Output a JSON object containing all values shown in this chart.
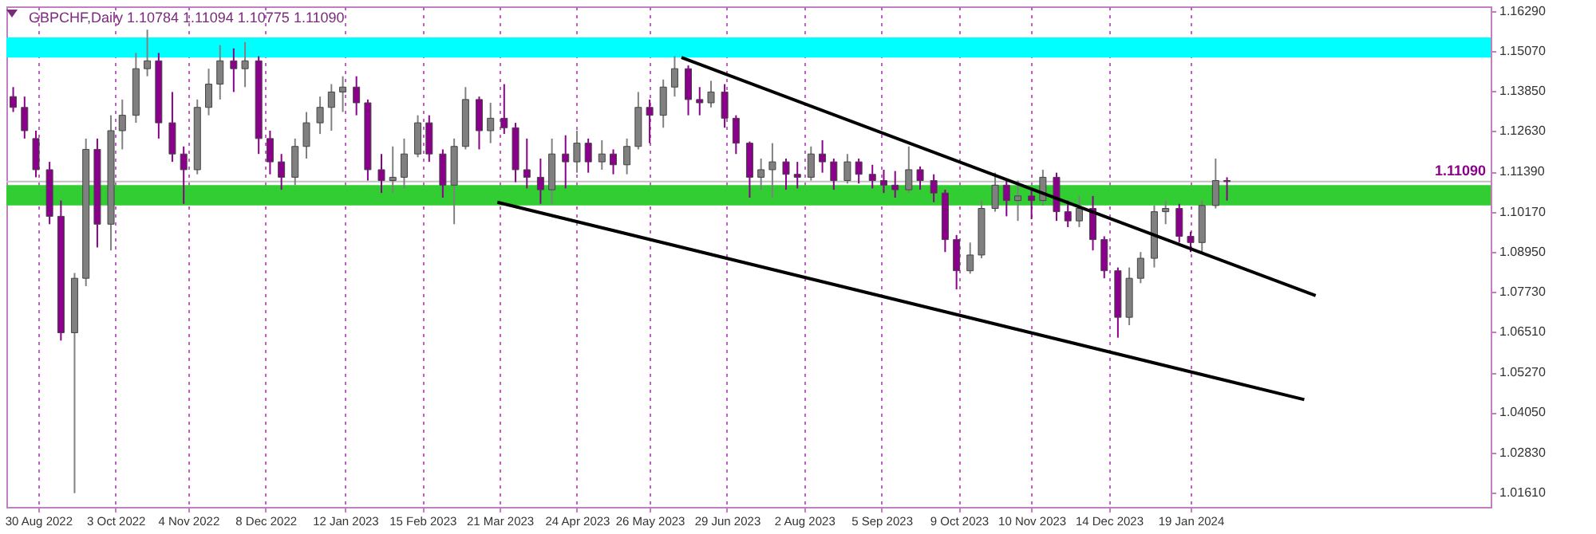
{
  "chart_data": {
    "type": "candlestick",
    "title": "GBPCHF,Daily  1.10784 1.11094 1.10775 1.11090",
    "x": [
      "2022-08-19",
      "2022-08-24",
      "2022-08-29",
      "2022-09-04",
      "2022-09-09",
      "2022-09-15",
      "2022-09-20",
      "2022-09-25",
      "2022-10-01",
      "2022-10-06",
      "2022-10-12",
      "2022-10-17",
      "2022-10-22",
      "2022-10-28",
      "2022-11-02",
      "2022-11-08",
      "2022-11-13",
      "2022-11-18",
      "2022-11-24",
      "2022-11-29",
      "2022-12-05",
      "2022-12-10",
      "2022-12-15",
      "2022-12-21",
      "2022-12-26",
      "2023-01-01",
      "2023-01-06",
      "2023-01-11",
      "2023-01-17",
      "2023-01-22",
      "2023-01-28",
      "2023-02-02",
      "2023-02-07",
      "2023-02-13",
      "2023-02-18",
      "2023-02-24",
      "2023-03-01",
      "2023-03-06",
      "2023-03-12",
      "2023-03-17",
      "2023-03-23",
      "2023-03-28",
      "2023-04-02",
      "2023-04-08",
      "2023-04-13",
      "2023-04-19",
      "2023-04-24",
      "2023-04-29",
      "2023-05-05",
      "2023-05-10",
      "2023-05-16",
      "2023-05-21",
      "2023-05-26",
      "2023-06-01",
      "2023-06-06",
      "2023-06-12",
      "2023-06-17",
      "2023-06-22",
      "2023-06-28",
      "2023-07-03",
      "2023-07-09",
      "2023-07-14",
      "2023-07-19",
      "2023-07-25",
      "2023-07-30",
      "2023-08-05",
      "2023-08-10",
      "2023-08-15",
      "2023-08-21",
      "2023-08-26",
      "2023-09-01",
      "2023-09-06",
      "2023-09-11",
      "2023-09-17",
      "2023-09-22",
      "2023-09-28",
      "2023-10-03",
      "2023-10-08",
      "2023-10-14",
      "2023-10-19",
      "2023-10-25",
      "2023-10-30",
      "2023-11-04",
      "2023-11-10",
      "2023-11-15",
      "2023-11-21",
      "2023-11-26",
      "2023-12-01",
      "2023-12-07",
      "2023-12-12",
      "2023-12-18",
      "2023-12-23",
      "2023-12-28",
      "2024-01-03",
      "2024-01-08",
      "2024-01-14",
      "2024-01-19",
      "2024-01-24",
      "2024-01-30",
      "2024-02-04"
    ],
    "ohlc": [
      [
        1.1368,
        1.1397,
        1.1321,
        1.1335
      ],
      [
        1.1335,
        1.1368,
        1.124,
        1.1264
      ],
      [
        1.124,
        1.1264,
        1.1122,
        1.1145
      ],
      [
        1.1145,
        1.1169,
        1.0979,
        1.1003
      ],
      [
        1.1003,
        1.1051,
        1.0624,
        1.0648
      ],
      [
        1.0648,
        1.083,
        1.0159,
        1.0814
      ],
      [
        1.0814,
        1.124,
        1.079,
        1.1207
      ],
      [
        1.1207,
        1.124,
        1.0908,
        1.0979
      ],
      [
        1.0979,
        1.1311,
        1.0899,
        1.1264
      ],
      [
        1.1264,
        1.1359,
        1.1207,
        1.1311
      ],
      [
        1.1311,
        1.1501,
        1.1288,
        1.1453
      ],
      [
        1.1453,
        1.1572,
        1.143,
        1.1477
      ],
      [
        1.1477,
        1.1501,
        1.124,
        1.1288
      ],
      [
        1.1288,
        1.1382,
        1.1169,
        1.1193
      ],
      [
        1.1193,
        1.1216,
        1.1041,
        1.1145
      ],
      [
        1.1145,
        1.1359,
        1.1131,
        1.1335
      ],
      [
        1.1335,
        1.1453,
        1.1311,
        1.1406
      ],
      [
        1.1406,
        1.1525,
        1.1359,
        1.1477
      ],
      [
        1.1477,
        1.1515,
        1.1382,
        1.1453
      ],
      [
        1.1453,
        1.1534,
        1.1397,
        1.1477
      ],
      [
        1.1477,
        1.1491,
        1.1193,
        1.124
      ],
      [
        1.124,
        1.1264,
        1.1131,
        1.1169
      ],
      [
        1.1169,
        1.1193,
        1.1084,
        1.1122
      ],
      [
        1.1122,
        1.124,
        1.1098,
        1.1216
      ],
      [
        1.1216,
        1.1321,
        1.1179,
        1.1288
      ],
      [
        1.1288,
        1.1368,
        1.1254,
        1.1335
      ],
      [
        1.1335,
        1.1406,
        1.1264,
        1.1382
      ],
      [
        1.1382,
        1.143,
        1.1321,
        1.1397
      ],
      [
        1.1397,
        1.143,
        1.1311,
        1.1349
      ],
      [
        1.1349,
        1.1359,
        1.1112,
        1.1145
      ],
      [
        1.1145,
        1.1193,
        1.1074,
        1.1112
      ],
      [
        1.1112,
        1.1216,
        1.1074,
        1.1122
      ],
      [
        1.1122,
        1.124,
        1.1088,
        1.1193
      ],
      [
        1.1193,
        1.1311,
        1.1183,
        1.1288
      ],
      [
        1.1288,
        1.1311,
        1.1169,
        1.1193
      ],
      [
        1.1193,
        1.1207,
        1.106,
        1.1098
      ],
      [
        1.1098,
        1.124,
        1.0979,
        1.1216
      ],
      [
        1.1216,
        1.1397,
        1.1207,
        1.1359
      ],
      [
        1.1359,
        1.1368,
        1.1207,
        1.1264
      ],
      [
        1.1264,
        1.1349,
        1.1226,
        1.1302
      ],
      [
        1.1302,
        1.1406,
        1.1254,
        1.1273
      ],
      [
        1.1273,
        1.1288,
        1.1107,
        1.1145
      ],
      [
        1.1145,
        1.124,
        1.1088,
        1.1122
      ],
      [
        1.1122,
        1.1179,
        1.1041,
        1.1084
      ],
      [
        1.1084,
        1.124,
        1.1041,
        1.1193
      ],
      [
        1.1193,
        1.125,
        1.1088,
        1.1169
      ],
      [
        1.1169,
        1.1264,
        1.1136,
        1.1226
      ],
      [
        1.1226,
        1.124,
        1.1136,
        1.1169
      ],
      [
        1.1169,
        1.1235,
        1.1145,
        1.1193
      ],
      [
        1.1193,
        1.1207,
        1.1131,
        1.116
      ],
      [
        1.116,
        1.124,
        1.1131,
        1.1216
      ],
      [
        1.1216,
        1.1382,
        1.1207,
        1.1335
      ],
      [
        1.1335,
        1.1359,
        1.1226,
        1.1311
      ],
      [
        1.1311,
        1.142,
        1.1273,
        1.1397
      ],
      [
        1.1397,
        1.1491,
        1.1368,
        1.1453
      ],
      [
        1.1453,
        1.1463,
        1.1311,
        1.1359
      ],
      [
        1.1359,
        1.1397,
        1.1311,
        1.1349
      ],
      [
        1.1349,
        1.1416,
        1.1335,
        1.1382
      ],
      [
        1.1382,
        1.1406,
        1.1273,
        1.1302
      ],
      [
        1.1302,
        1.1311,
        1.1193,
        1.1226
      ],
      [
        1.1226,
        1.1231,
        1.106,
        1.1122
      ],
      [
        1.1122,
        1.1179,
        1.1084,
        1.1145
      ],
      [
        1.1145,
        1.1226,
        1.106,
        1.1169
      ],
      [
        1.1169,
        1.1179,
        1.1084,
        1.1131
      ],
      [
        1.1131,
        1.1169,
        1.1088,
        1.1122
      ],
      [
        1.1122,
        1.1216,
        1.1112,
        1.1193
      ],
      [
        1.1193,
        1.1235,
        1.1136,
        1.1169
      ],
      [
        1.1169,
        1.1179,
        1.1084,
        1.1112
      ],
      [
        1.1112,
        1.1193,
        1.1103,
        1.1169
      ],
      [
        1.1169,
        1.1179,
        1.1103,
        1.1131
      ],
      [
        1.1131,
        1.116,
        1.1088,
        1.1112
      ],
      [
        1.1112,
        1.1145,
        1.1074,
        1.1098
      ],
      [
        1.1098,
        1.1141,
        1.106,
        1.1084
      ],
      [
        1.1084,
        1.1216,
        1.1074,
        1.1145
      ],
      [
        1.1145,
        1.1155,
        1.1084,
        1.1112
      ],
      [
        1.1112,
        1.1131,
        1.1046,
        1.1074
      ],
      [
        1.1074,
        1.1084,
        1.0894,
        1.0932
      ],
      [
        1.0932,
        1.0946,
        1.078,
        1.0837
      ],
      [
        1.0837,
        1.0923,
        1.0828,
        1.0885
      ],
      [
        1.0885,
        1.1051,
        1.0875,
        1.1027
      ],
      [
        1.1027,
        1.1136,
        1.1017,
        1.1098
      ],
      [
        1.1098,
        1.1112,
        1.1003,
        1.1051
      ],
      [
        1.1051,
        1.1112,
        1.0989,
        1.1065
      ],
      [
        1.1065,
        1.1084,
        1.0994,
        1.1051
      ],
      [
        1.1051,
        1.1145,
        1.1036,
        1.1122
      ],
      [
        1.1122,
        1.1136,
        1.0989,
        1.1017
      ],
      [
        1.1017,
        1.1051,
        1.097,
        1.0989
      ],
      [
        1.0989,
        1.1065,
        1.097,
        1.1027
      ],
      [
        1.1027,
        1.1065,
        1.0899,
        1.0932
      ],
      [
        1.0932,
        1.0942,
        1.0814,
        1.0837
      ],
      [
        1.0837,
        1.0847,
        1.0633,
        1.0695
      ],
      [
        1.0695,
        1.0847,
        1.0671,
        1.0814
      ],
      [
        1.0814,
        1.0894,
        1.0799,
        1.0875
      ],
      [
        1.0875,
        1.1036,
        1.0847,
        1.1017
      ],
      [
        1.1017,
        1.1051,
        1.0979,
        1.1027
      ],
      [
        1.1027,
        1.1041,
        1.0923,
        1.0942
      ],
      [
        1.0942,
        1.0956,
        1.0894,
        1.0923
      ],
      [
        1.0923,
        1.1051,
        1.0894,
        1.1036
      ],
      [
        1.1036,
        1.1179,
        1.1027,
        1.1112
      ],
      [
        1.1112,
        1.1122,
        1.1051,
        1.1109
      ]
    ],
    "colors": [
      "#8b008b",
      "#8b008b",
      "#8b008b",
      "#8b008b",
      "#8b008b",
      "#808080",
      "#808080",
      "#8b008b",
      "#808080",
      "#808080",
      "#808080",
      "#808080",
      "#8b008b",
      "#8b008b",
      "#8b008b",
      "#808080",
      "#808080",
      "#808080",
      "#8b008b",
      "#808080",
      "#8b008b",
      "#8b008b",
      "#8b008b",
      "#808080",
      "#808080",
      "#808080",
      "#808080",
      "#808080",
      "#8b008b",
      "#8b008b",
      "#8b008b",
      "#808080",
      "#808080",
      "#808080",
      "#8b008b",
      "#8b008b",
      "#808080",
      "#808080",
      "#8b008b",
      "#808080",
      "#8b008b",
      "#8b008b",
      "#8b008b",
      "#8b008b",
      "#808080",
      "#8b008b",
      "#808080",
      "#8b008b",
      "#808080",
      "#8b008b",
      "#808080",
      "#808080",
      "#8b008b",
      "#808080",
      "#808080",
      "#8b008b",
      "#8b008b",
      "#808080",
      "#8b008b",
      "#8b008b",
      "#8b008b",
      "#808080",
      "#808080",
      "#8b008b",
      "#8b008b",
      "#808080",
      "#8b008b",
      "#8b008b",
      "#808080",
      "#8b008b",
      "#8b008b",
      "#8b008b",
      "#8b008b",
      "#808080",
      "#8b008b",
      "#8b008b",
      "#8b008b",
      "#8b008b",
      "#808080",
      "#808080",
      "#808080",
      "#8b008b",
      "#808080",
      "#8b008b",
      "#808080",
      "#8b008b",
      "#8b008b",
      "#808080",
      "#8b008b",
      "#8b008b",
      "#8b008b",
      "#808080",
      "#808080",
      "#808080",
      "#808080",
      "#8b008b",
      "#8b008b",
      "#808080",
      "#808080",
      "#8b008b"
    ],
    "series": [
      {
        "type": "line",
        "color": "#000000",
        "x": [
          "2023-06-09",
          "2024-03-14"
        ],
        "values": [
          1.1487,
          1.0761
        ]
      },
      {
        "type": "line",
        "color": "#000000",
        "x": [
          "2023-03-20",
          "2024-03-09"
        ],
        "values": [
          1.1046,
          1.0444
        ]
      }
    ],
    "xlim": [
      "2022-08-16",
      "2024-05-30"
    ],
    "xticks": [
      {
        "value": "2022-08-30",
        "label": "30 Aug 2022"
      },
      {
        "value": "2022-10-03",
        "label": "3 Oct 2022"
      },
      {
        "value": "2022-11-04",
        "label": "4 Nov 2022"
      },
      {
        "value": "2022-12-08",
        "label": "8 Dec 2022"
      },
      {
        "value": "2023-01-12",
        "label": "12 Jan 2023"
      },
      {
        "value": "2023-02-15",
        "label": "15 Feb 2023"
      },
      {
        "value": "2023-03-21",
        "label": "21 Mar 2023"
      },
      {
        "value": "2023-04-24",
        "label": "24 Apr 2023"
      },
      {
        "value": "2023-05-26",
        "label": "26 May 2023"
      },
      {
        "value": "2023-06-29",
        "label": "29 Jun 2023"
      },
      {
        "value": "2023-08-02",
        "label": "2 Aug 2023"
      },
      {
        "value": "2023-09-05",
        "label": "5 Sep 2023"
      },
      {
        "value": "2023-10-09",
        "label": "9 Oct 2023"
      },
      {
        "value": "2023-11-10",
        "label": "10 Nov 2023"
      },
      {
        "value": "2023-12-14",
        "label": "14 Dec 2023"
      },
      {
        "value": "2024-01-19",
        "label": "19 Jan 2024"
      }
    ],
    "ylim": [
      1.0117,
      1.1643
    ],
    "yticks": [
      {
        "value": 1.0161,
        "label": "1.01610"
      },
      {
        "value": 1.0283,
        "label": "1.02830"
      },
      {
        "value": 1.0405,
        "label": "1.04050"
      },
      {
        "value": 1.0527,
        "label": "1.05270"
      },
      {
        "value": 1.0651,
        "label": "1.06510"
      },
      {
        "value": 1.0773,
        "label": "1.07730"
      },
      {
        "value": 1.0895,
        "label": "1.08950"
      },
      {
        "value": 1.1017,
        "label": "1.10170"
      },
      {
        "value": 1.1139,
        "label": "1.11390"
      },
      {
        "value": 1.1263,
        "label": "1.12630"
      },
      {
        "value": 1.1385,
        "label": "1.13850"
      },
      {
        "value": 1.1507,
        "label": "1.15070"
      },
      {
        "value": 1.1629,
        "label": "1.16290"
      }
    ],
    "grid": "x",
    "bands": [
      {
        "axis": "y",
        "from": 1.1487,
        "to": 1.1548,
        "color": "#00ffff"
      },
      {
        "axis": "y",
        "from": 1.1036,
        "to": 1.1098,
        "color": "#32cd32"
      }
    ],
    "ref_lines": [
      {
        "axis": "y",
        "value": 1.1109,
        "label": "1.11090",
        "color": "#c0c0c0"
      }
    ]
  }
}
